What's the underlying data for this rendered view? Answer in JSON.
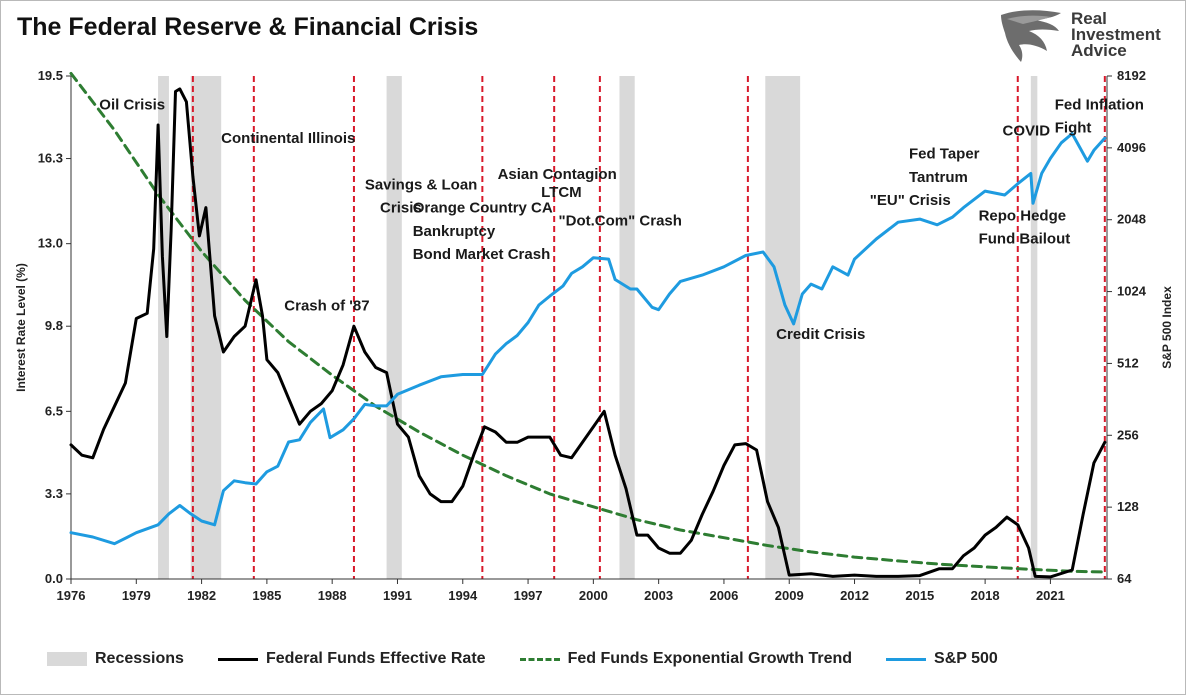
{
  "header": {
    "title": "The Federal Reserve & Financial Crisis",
    "logo_lines": [
      "Real",
      "Investment",
      "Advice"
    ]
  },
  "legend": {
    "recessions": "Recessions",
    "fed_funds": "Federal Funds Effective Rate",
    "trend": "Fed Funds Exponential Growth Trend",
    "sp500": "S&P 500"
  },
  "colors": {
    "fed_funds": "#000000",
    "trend": "#2e7d32",
    "sp500": "#1e9be0",
    "recession": "#d9d9d9",
    "crisis_line": "#d8192b"
  },
  "chart_data": {
    "type": "line",
    "title": "The Federal Reserve & Financial Crisis",
    "xlim": [
      1976,
      2023.6
    ],
    "x_ticks": [
      "1976",
      "1979",
      "1982",
      "1985",
      "1988",
      "1991",
      "1994",
      "1997",
      "2000",
      "2003",
      "2006",
      "2009",
      "2012",
      "2015",
      "2018",
      "2021"
    ],
    "y_left": {
      "label": "Interest Rate Level (%)",
      "ylim": [
        0,
        19.5
      ],
      "ticks": [
        "0.0",
        "3.3",
        "6.5",
        "9.8",
        "13.0",
        "16.3",
        "19.5"
      ]
    },
    "y_right": {
      "label": "S&P 500 Index",
      "scale": "log2",
      "ylim": [
        64,
        8192
      ],
      "ticks": [
        "64",
        "128",
        "256",
        "512",
        "1024",
        "2048",
        "4096",
        "8192"
      ]
    },
    "recessions": [
      [
        1980.0,
        1980.5
      ],
      [
        1981.5,
        1982.9
      ],
      [
        1990.5,
        1991.2
      ],
      [
        2001.2,
        2001.9
      ],
      [
        2007.9,
        2009.5
      ],
      [
        2020.1,
        2020.4
      ]
    ],
    "crisis_lines": [
      1981.6,
      1984.4,
      1989.0,
      1994.9,
      1998.2,
      2000.3,
      2007.1,
      2019.5,
      2023.5
    ],
    "annotations": [
      {
        "text": "Oil Crisis",
        "x": 1977.3,
        "y": 18.2
      },
      {
        "text": "Continental Illinois",
        "x": 1982.9,
        "y": 16.9
      },
      {
        "text": "Savings & Loan",
        "x": 1989.5,
        "y": 15.1
      },
      {
        "text": "Crisis",
        "x": 1990.2,
        "y": 14.2
      },
      {
        "text": "Orange Country CA",
        "x": 1991.7,
        "y": 14.2
      },
      {
        "text": "Bankruptcy",
        "x": 1991.7,
        "y": 13.3
      },
      {
        "text": "Bond Market Crash",
        "x": 1991.7,
        "y": 12.4
      },
      {
        "text": "Asian Contagion",
        "x": 1995.6,
        "y": 15.5
      },
      {
        "text": "LTCM",
        "x": 1997.6,
        "y": 14.8
      },
      {
        "text": "\"Dot.Com\" Crash",
        "x": 1998.4,
        "y": 13.7
      },
      {
        "text": "Crash of '87",
        "x": 1985.8,
        "y": 10.4
      },
      {
        "text": "Credit Crisis",
        "x": 2008.4,
        "y": 9.3
      },
      {
        "text": "\"EU\" Crisis",
        "x": 2012.7,
        "y": 14.5
      },
      {
        "text": "Fed Taper",
        "x": 2014.5,
        "y": 16.3
      },
      {
        "text": "Tantrum",
        "x": 2014.5,
        "y": 15.4
      },
      {
        "text": "COVID",
        "x": 2018.8,
        "y": 17.2
      },
      {
        "text": "Fed Inflation",
        "x": 2021.2,
        "y": 18.2
      },
      {
        "text": "Fight",
        "x": 2021.2,
        "y": 17.3
      },
      {
        "text": "Repo Hedge",
        "x": 2017.7,
        "y": 13.9
      },
      {
        "text": "Fund Bailout",
        "x": 2017.7,
        "y": 13.0
      }
    ],
    "series": [
      {
        "name": "Federal Funds Effective Rate",
        "axis": "left",
        "x": [
          1976.0,
          1976.5,
          1977.0,
          1977.5,
          1978.0,
          1978.5,
          1979.0,
          1979.5,
          1979.8,
          1980.0,
          1980.2,
          1980.4,
          1980.6,
          1980.8,
          1981.0,
          1981.3,
          1981.6,
          1981.9,
          1982.2,
          1982.6,
          1983.0,
          1983.5,
          1984.0,
          1984.5,
          1984.8,
          1985.0,
          1985.5,
          1986.0,
          1986.5,
          1987.0,
          1987.5,
          1988.0,
          1988.5,
          1989.0,
          1989.5,
          1990.0,
          1990.5,
          1991.0,
          1991.5,
          1992.0,
          1992.5,
          1993.0,
          1993.5,
          1994.0,
          1994.5,
          1995.0,
          1995.5,
          1996.0,
          1996.5,
          1997.0,
          1997.5,
          1998.0,
          1998.5,
          1999.0,
          1999.5,
          2000.0,
          2000.5,
          2001.0,
          2001.5,
          2002.0,
          2002.5,
          2003.0,
          2003.5,
          2004.0,
          2004.5,
          2005.0,
          2005.5,
          2006.0,
          2006.5,
          2007.0,
          2007.5,
          2008.0,
          2008.5,
          2009.0,
          2010.0,
          2011.0,
          2012.0,
          2013.0,
          2014.0,
          2015.0,
          2015.9,
          2016.5,
          2017.0,
          2017.5,
          2018.0,
          2018.5,
          2019.0,
          2019.5,
          2020.0,
          2020.3,
          2021.0,
          2022.0,
          2022.5,
          2023.0,
          2023.5
        ],
        "values": [
          5.2,
          4.8,
          4.7,
          5.8,
          6.7,
          7.6,
          10.1,
          10.3,
          12.8,
          17.6,
          12.5,
          9.4,
          13.5,
          18.9,
          19.0,
          18.5,
          15.6,
          13.3,
          14.4,
          10.2,
          8.8,
          9.4,
          9.8,
          11.6,
          10.2,
          8.5,
          8.0,
          7.0,
          6.0,
          6.5,
          6.8,
          7.3,
          8.3,
          9.8,
          8.8,
          8.2,
          8.0,
          6.0,
          5.5,
          4.0,
          3.3,
          3.0,
          3.0,
          3.6,
          4.8,
          5.9,
          5.7,
          5.3,
          5.3,
          5.5,
          5.5,
          5.5,
          4.8,
          4.7,
          5.3,
          5.9,
          6.5,
          4.8,
          3.5,
          1.7,
          1.7,
          1.2,
          1.0,
          1.0,
          1.5,
          2.5,
          3.4,
          4.4,
          5.2,
          5.25,
          5.0,
          3.0,
          2.0,
          0.15,
          0.2,
          0.1,
          0.15,
          0.1,
          0.1,
          0.13,
          0.4,
          0.4,
          0.9,
          1.2,
          1.7,
          2.0,
          2.4,
          2.1,
          1.2,
          0.1,
          0.08,
          0.35,
          2.5,
          4.5,
          5.3
        ]
      },
      {
        "name": "Fed Funds Exponential Growth Trend",
        "axis": "left",
        "style": "dashed",
        "x": [
          1976.0,
          1978.0,
          1980.0,
          1982.0,
          1984.0,
          1986.0,
          1988.0,
          1990.0,
          1992.0,
          1994.0,
          1996.0,
          1998.0,
          2000.0,
          2002.0,
          2004.0,
          2006.0,
          2008.0,
          2010.0,
          2012.0,
          2014.0,
          2016.0,
          2018.0,
          2020.0,
          2022.0,
          2023.5
        ],
        "values": [
          19.6,
          17.4,
          14.9,
          12.7,
          10.8,
          9.2,
          7.9,
          6.7,
          5.7,
          4.8,
          4.0,
          3.3,
          2.8,
          2.3,
          1.9,
          1.6,
          1.3,
          1.05,
          0.85,
          0.7,
          0.57,
          0.47,
          0.38,
          0.3,
          0.27
        ]
      },
      {
        "name": "S&P 500",
        "axis": "right",
        "x": [
          1976.0,
          1977.0,
          1978.0,
          1979.0,
          1980.0,
          1980.5,
          1981.0,
          1981.5,
          1982.0,
          1982.6,
          1983.0,
          1983.5,
          1984.0,
          1984.5,
          1985.0,
          1985.5,
          1986.0,
          1986.5,
          1987.0,
          1987.6,
          1987.9,
          1988.5,
          1989.0,
          1989.5,
          1990.0,
          1990.5,
          1991.0,
          1992.0,
          1993.0,
          1994.0,
          1994.9,
          1995.5,
          1996.0,
          1996.5,
          1997.0,
          1997.5,
          1998.0,
          1998.6,
          1999.0,
          1999.5,
          2000.0,
          2000.7,
          2001.0,
          2001.7,
          2002.0,
          2002.7,
          2003.0,
          2003.5,
          2004.0,
          2005.0,
          2006.0,
          2007.0,
          2007.8,
          2008.3,
          2008.8,
          2009.2,
          2009.6,
          2010.0,
          2010.5,
          2011.0,
          2011.7,
          2012.0,
          2013.0,
          2014.0,
          2015.0,
          2015.8,
          2016.5,
          2017.0,
          2018.0,
          2018.9,
          2019.5,
          2020.1,
          2020.2,
          2020.6,
          2021.0,
          2021.5,
          2022.0,
          2022.7,
          2023.0,
          2023.5
        ],
        "values": [
          100,
          96,
          90,
          100,
          108,
          120,
          130,
          120,
          112,
          108,
          150,
          165,
          162,
          160,
          180,
          190,
          240,
          245,
          290,
          330,
          250,
          270,
          300,
          345,
          340,
          340,
          380,
          415,
          450,
          460,
          460,
          560,
          620,
          670,
          760,
          900,
          980,
          1080,
          1220,
          1300,
          1420,
          1400,
          1150,
          1050,
          1050,
          880,
          860,
          1000,
          1130,
          1200,
          1300,
          1450,
          1500,
          1300,
          900,
          750,
          1000,
          1100,
          1050,
          1300,
          1200,
          1400,
          1700,
          2000,
          2060,
          1950,
          2100,
          2300,
          2700,
          2600,
          2900,
          3200,
          2400,
          3200,
          3700,
          4300,
          4700,
          3600,
          4000,
          4500
        ]
      }
    ]
  }
}
